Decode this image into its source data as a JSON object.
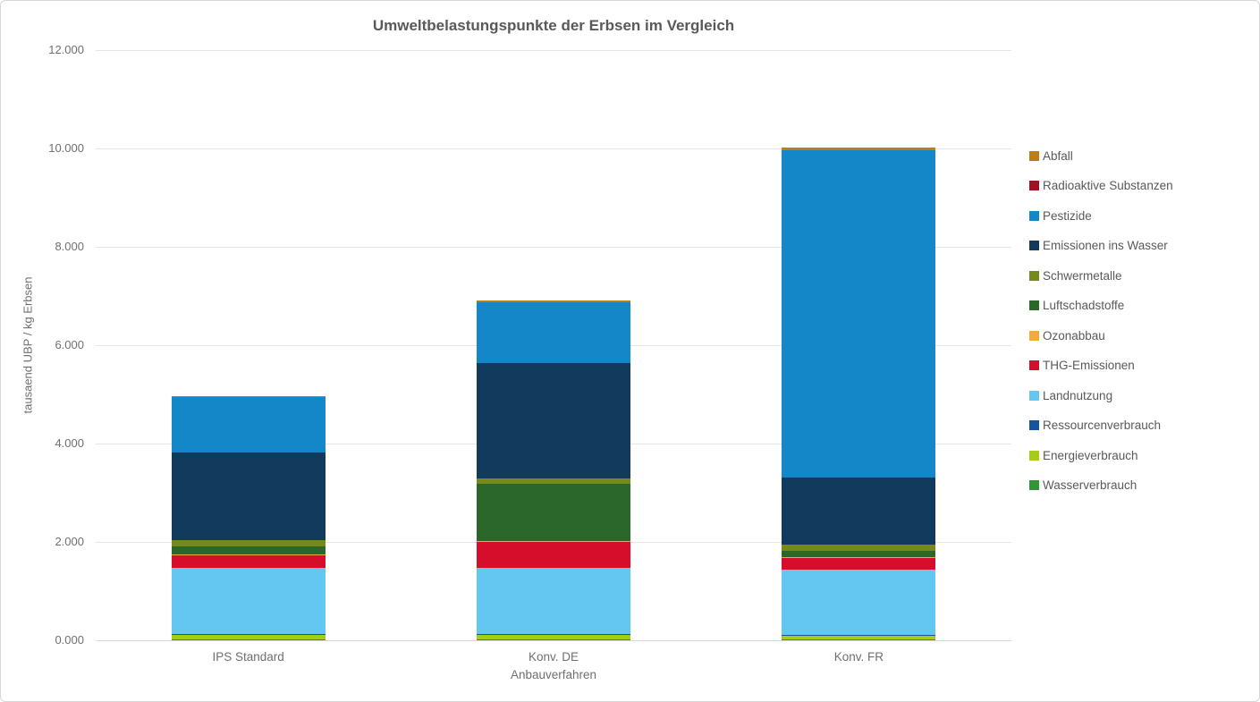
{
  "window": {
    "background": "#ffffff",
    "border_color": "#d6d6d6"
  },
  "chart_data": {
    "type": "bar",
    "stacked": true,
    "title": "Umweltbelastungspunkte der Erbsen im Vergleich",
    "xlabel": "Anbauverfahren",
    "ylabel": "tausaend UBP / kg Erbsen",
    "categories": [
      "IPS Standard",
      "Konv. DE",
      "Konv. FR"
    ],
    "ylim": [
      0,
      12
    ],
    "ytick_step": 2,
    "ytick_labels": [
      "0.000",
      "2.000",
      "4.000",
      "6.000",
      "8.000",
      "10.000",
      "12.000"
    ],
    "grid": true,
    "legend_position": "right",
    "value_unit": "tausend UBP / kg Erbsen",
    "series_note": "stack order bottom to top; legend shown in reverse (top to bottom)",
    "series": [
      {
        "name": "Wasserverbrauch",
        "color": "#2F9633",
        "values": [
          0.01,
          0.01,
          0.01
        ]
      },
      {
        "name": "Energieverbrauch",
        "color": "#A8CB17",
        "values": [
          0.1,
          0.1,
          0.09
        ]
      },
      {
        "name": "Ressourcenverbrauch",
        "color": "#16549E",
        "values": [
          0.01,
          0.01,
          0.01
        ]
      },
      {
        "name": "Landnutzung",
        "color": "#64C7F2",
        "values": [
          1.36,
          1.36,
          1.33
        ]
      },
      {
        "name": "THG-Emissionen",
        "color": "#D60E2C",
        "values": [
          0.25,
          0.53,
          0.24
        ]
      },
      {
        "name": "Ozonabbau",
        "color": "#F4A93C",
        "values": [
          0.01,
          0.01,
          0.01
        ]
      },
      {
        "name": "Luftschadstoffe",
        "color": "#2B672B",
        "values": [
          0.17,
          1.16,
          0.12
        ]
      },
      {
        "name": "Schwermetalle",
        "color": "#76891C",
        "values": [
          0.12,
          0.11,
          0.14
        ]
      },
      {
        "name": "Emissionen ins Wasser",
        "color": "#123A5C",
        "values": [
          1.79,
          2.35,
          1.36
        ]
      },
      {
        "name": "Pestizide",
        "color": "#1487C9",
        "values": [
          1.13,
          1.24,
          6.66
        ]
      },
      {
        "name": "Radioaktive Substanzen",
        "color": "#A01226",
        "values": [
          0.0,
          0.0,
          0.0
        ]
      },
      {
        "name": "Abfall",
        "color": "#BF7D15",
        "values": [
          0.01,
          0.03,
          0.04
        ]
      }
    ],
    "totals_approx": [
      4.96,
      6.91,
      10.01
    ]
  }
}
